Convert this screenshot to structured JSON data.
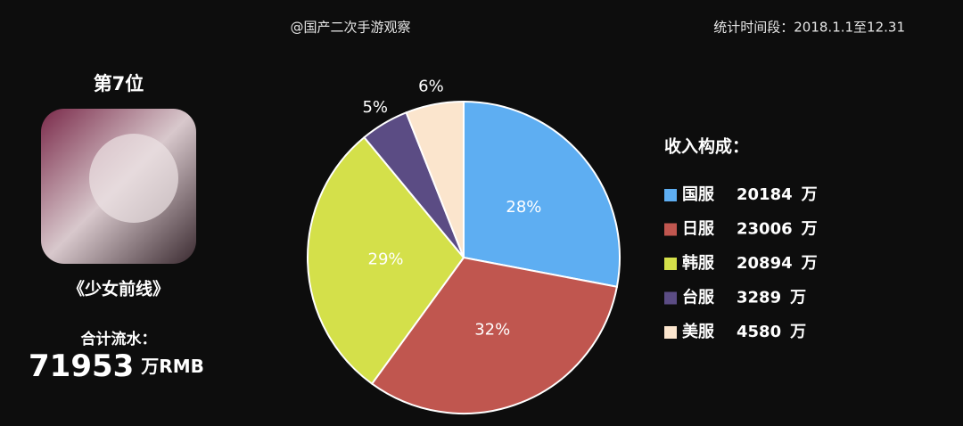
{
  "header": {
    "source": "@国产二次手游观察",
    "period": "统计时间段：2018.1.1至12.31"
  },
  "game": {
    "rank": "第7位",
    "name": "《少女前线》",
    "total_label": "合计流水：",
    "total": 71953,
    "total_unit": "万RMB"
  },
  "chart_data": {
    "type": "pie",
    "legend_title": "收入构成：",
    "categories": [
      "国服",
      "日服",
      "韩服",
      "台服",
      "美服"
    ],
    "values": [
      28,
      32,
      29,
      5,
      6
    ],
    "value_labels": [
      "28%",
      "32%",
      "29%",
      "5%",
      "6%"
    ],
    "colors": [
      "#5eaef2",
      "#c0564f",
      "#d4e04a",
      "#5b4c84",
      "#fbe5cd"
    ],
    "amounts": [
      20184,
      23006,
      20894,
      3289,
      4580
    ],
    "amount_unit": "万"
  }
}
